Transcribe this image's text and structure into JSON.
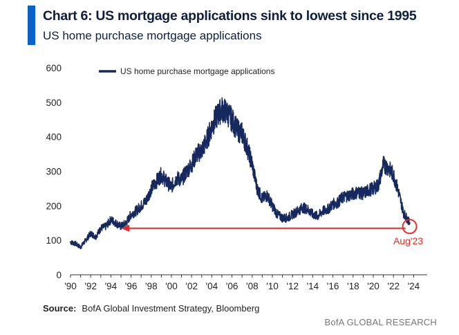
{
  "header": {
    "title": "Chart 6: US mortgage applications sink to lowest since 1995",
    "subtitle": "US home purchase mortgage applications"
  },
  "footer": {
    "source_label": "Source:",
    "source_text": "BofA Global Investment Strategy, Bloomberg",
    "brand": "BofA GLOBAL RESEARCH"
  },
  "colors": {
    "accent": "#0a61c9",
    "series": "#15295e",
    "annotation": "#e32b2b"
  },
  "chart_data": {
    "type": "line",
    "title": "",
    "xlabel": "",
    "ylabel": "",
    "xlim": [
      1990,
      2025
    ],
    "ylim": [
      0,
      600
    ],
    "yticks": [
      0,
      100,
      200,
      300,
      400,
      500,
      600
    ],
    "xticks": [
      1990,
      1992,
      1994,
      1996,
      1998,
      2000,
      2002,
      2004,
      2006,
      2008,
      2010,
      2012,
      2014,
      2016,
      2018,
      2020,
      2022,
      2024
    ],
    "xtick_labels": [
      "'90",
      "'92",
      "'94",
      "'96",
      "'98",
      "'00",
      "'02",
      "'04",
      "'06",
      "'08",
      "'10",
      "'12",
      "'14",
      "'16",
      "'18",
      "'20",
      "'22",
      "'24"
    ],
    "legend": {
      "position": "top-left",
      "entries": [
        "US home purchase mortgage applications"
      ]
    },
    "grid": false,
    "series": [
      {
        "name": "US home purchase mortgage applications",
        "x": [
          1990.0,
          1990.5,
          1991.0,
          1991.5,
          1992.0,
          1992.5,
          1993.0,
          1993.5,
          1994.0,
          1994.5,
          1995.0,
          1995.5,
          1996.0,
          1996.5,
          1997.0,
          1997.5,
          1998.0,
          1998.5,
          1999.0,
          1999.5,
          2000.0,
          2000.5,
          2001.0,
          2001.5,
          2002.0,
          2002.5,
          2003.0,
          2003.5,
          2004.0,
          2004.5,
          2005.0,
          2005.5,
          2006.0,
          2006.5,
          2007.0,
          2007.5,
          2008.0,
          2008.5,
          2009.0,
          2009.5,
          2010.0,
          2010.5,
          2011.0,
          2011.5,
          2012.0,
          2012.5,
          2013.0,
          2013.5,
          2014.0,
          2014.5,
          2015.0,
          2015.5,
          2016.0,
          2016.5,
          2017.0,
          2017.5,
          2018.0,
          2018.5,
          2019.0,
          2019.5,
          2020.0,
          2020.5,
          2021.0,
          2021.5,
          2022.0,
          2022.5,
          2023.0,
          2023.3,
          2023.6
        ],
        "values": [
          95,
          90,
          80,
          100,
          120,
          110,
          135,
          140,
          160,
          150,
          140,
          150,
          175,
          185,
          200,
          215,
          250,
          270,
          290,
          270,
          255,
          280,
          275,
          300,
          320,
          350,
          360,
          390,
          430,
          460,
          480,
          470,
          450,
          420,
          410,
          370,
          320,
          250,
          220,
          230,
          200,
          175,
          165,
          165,
          175,
          185,
          195,
          190,
          175,
          170,
          185,
          190,
          205,
          210,
          225,
          230,
          235,
          240,
          235,
          245,
          250,
          260,
          320,
          310,
          290,
          240,
          180,
          165,
          150
        ]
      }
    ],
    "annotations": [
      {
        "type": "arrow",
        "y": 135,
        "x_from": 2023.2,
        "x_to": 1995.0
      },
      {
        "type": "circle",
        "x": 2023.6,
        "y": 140,
        "label": "Aug'23"
      }
    ]
  }
}
